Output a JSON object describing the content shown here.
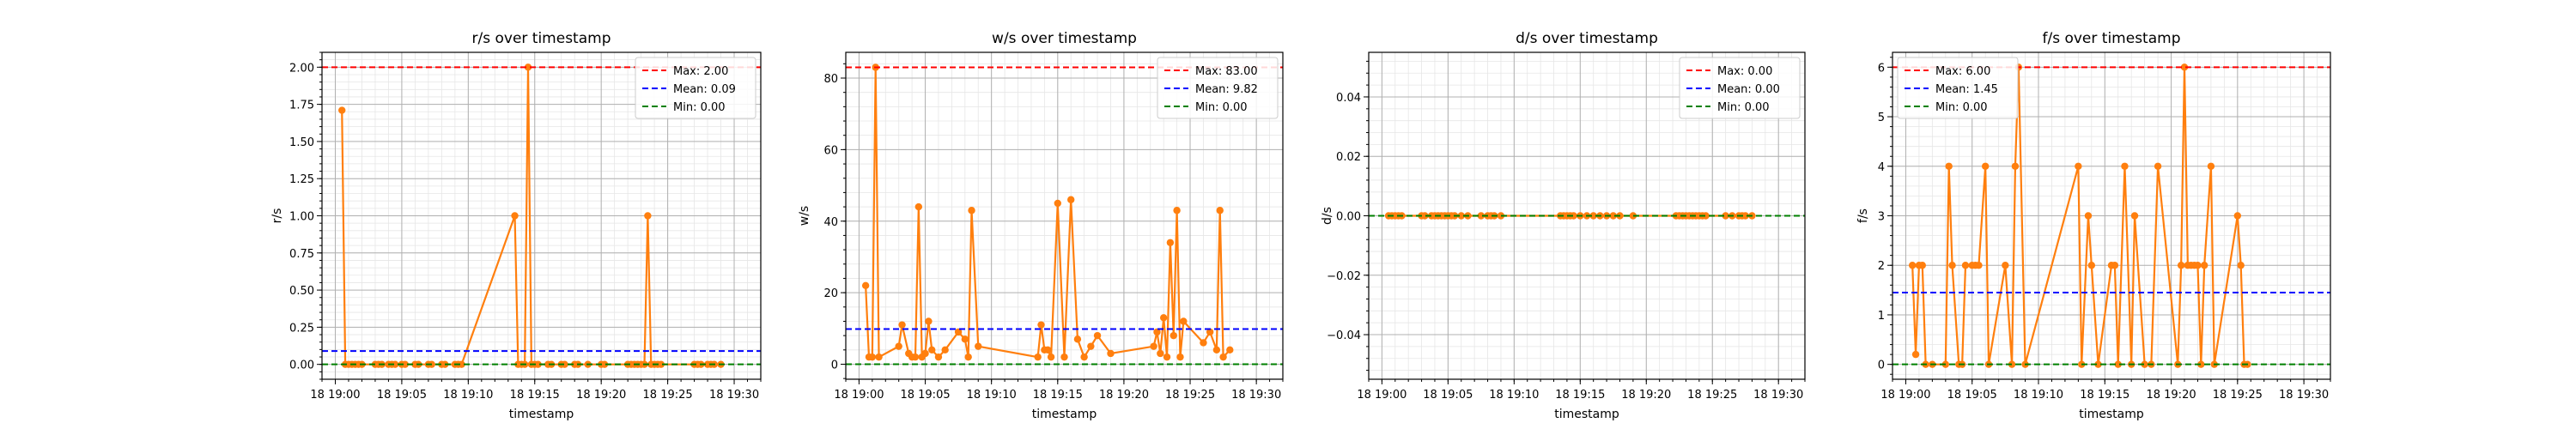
{
  "chart_data": [
    {
      "type": "line",
      "title": "r/s over timestamp",
      "xlabel": "timestamp",
      "ylabel": "r/s",
      "xlim": [
        "2024-01-18 18:59:00",
        "2024-01-18 19:32:00"
      ],
      "ylim": [
        -0.1,
        2.1
      ],
      "yticks": [
        0.0,
        0.25,
        0.5,
        0.75,
        1.0,
        1.25,
        1.5,
        1.75,
        2.0
      ],
      "ytick_labels": [
        "0.00",
        "0.25",
        "0.50",
        "0.75",
        "1.00",
        "1.25",
        "1.50",
        "1.75",
        "2.00"
      ],
      "xtick_labels": [
        "18 19:00",
        "18 19:05",
        "18 19:10",
        "18 19:15",
        "18 19:20",
        "18 19:25",
        "18 19:30"
      ],
      "grid": true,
      "legend_position": "top-right",
      "series": [
        {
          "color": "#ff7f0e",
          "x": [
            "19:00:30",
            "19:00:45",
            "19:01:00",
            "19:01:15",
            "19:01:30",
            "19:01:45",
            "19:02:00",
            "19:03:00",
            "19:03:15",
            "19:03:30",
            "19:04:00",
            "19:04:15",
            "19:04:30",
            "19:05:00",
            "19:05:15",
            "19:06:00",
            "19:06:15",
            "19:07:00",
            "19:07:15",
            "19:08:00",
            "19:08:15",
            "19:09:00",
            "19:09:15",
            "19:09:30",
            "19:13:30",
            "19:13:45",
            "19:14:00",
            "19:14:15",
            "19:14:30",
            "19:14:45",
            "19:15:00",
            "19:15:15",
            "19:16:00",
            "19:16:15",
            "19:17:00",
            "19:17:15",
            "19:18:00",
            "19:18:15",
            "19:19:00",
            "19:20:00",
            "19:20:15",
            "19:22:00",
            "19:22:15",
            "19:22:30",
            "19:22:45",
            "19:23:00",
            "19:23:15",
            "19:23:30",
            "19:23:45",
            "19:24:00",
            "19:24:15",
            "19:24:30",
            "19:27:00",
            "19:27:15",
            "19:27:30",
            "19:28:00",
            "19:28:15",
            "19:28:30",
            "19:29:00"
          ],
          "values": [
            1.71,
            0,
            0,
            0,
            0,
            0,
            0,
            0,
            0,
            0,
            0,
            0,
            0,
            0,
            0,
            0,
            0,
            0,
            0,
            0,
            0,
            0,
            0,
            0,
            1.0,
            0,
            0,
            0,
            2.0,
            0,
            0,
            0,
            0,
            0,
            0,
            0,
            0,
            0,
            0,
            0,
            0,
            0,
            0,
            0,
            0,
            0,
            0,
            1.0,
            0,
            0,
            0,
            0,
            0,
            0,
            0,
            0,
            0,
            0,
            0
          ]
        },
        {
          "name": "Max: 2.00",
          "color": "#ff0000",
          "style": "dashed",
          "constant": 2.0
        },
        {
          "name": "Mean: 0.09",
          "color": "#0000ff",
          "style": "dashed",
          "constant": 0.09
        },
        {
          "name": "Min: 0.00",
          "color": "#008000",
          "style": "dashed",
          "constant": 0.0
        }
      ]
    },
    {
      "type": "line",
      "title": "w/s over timestamp",
      "xlabel": "timestamp",
      "ylabel": "w/s",
      "xlim": [
        "2024-01-18 18:59:00",
        "2024-01-18 19:32:00"
      ],
      "ylim": [
        -4.2,
        87.2
      ],
      "yticks": [
        0,
        20,
        40,
        60,
        80
      ],
      "ytick_labels": [
        "0",
        "20",
        "40",
        "60",
        "80"
      ],
      "xtick_labels": [
        "18 19:00",
        "18 19:05",
        "18 19:10",
        "18 19:15",
        "18 19:20",
        "18 19:25",
        "18 19:30"
      ],
      "grid": true,
      "legend_position": "top-right",
      "series": [
        {
          "color": "#ff7f0e",
          "x": [
            "19:00:30",
            "19:00:45",
            "19:01:00",
            "19:01:15",
            "19:01:30",
            "19:03:00",
            "19:03:15",
            "19:03:45",
            "19:04:00",
            "19:04:15",
            "19:04:30",
            "19:04:45",
            "19:05:00",
            "19:05:15",
            "19:05:30",
            "19:06:00",
            "19:06:30",
            "19:07:30",
            "19:08:00",
            "19:08:15",
            "19:08:30",
            "19:09:00",
            "19:13:30",
            "19:13:45",
            "19:14:00",
            "19:14:15",
            "19:14:30",
            "19:15:00",
            "19:15:30",
            "19:16:00",
            "19:16:30",
            "19:17:00",
            "19:17:30",
            "19:18:00",
            "19:19:00",
            "19:22:15",
            "19:22:30",
            "19:22:45",
            "19:23:00",
            "19:23:15",
            "19:23:30",
            "19:23:45",
            "19:24:00",
            "19:24:15",
            "19:24:30",
            "19:26:00",
            "19:26:30",
            "19:27:00",
            "19:27:15",
            "19:27:30",
            "19:28:00"
          ],
          "values": [
            22,
            2,
            2,
            83,
            2,
            5,
            11,
            3,
            2,
            2,
            44,
            2,
            3,
            12,
            4,
            2,
            4,
            9,
            7,
            2,
            43,
            5,
            2,
            11,
            4,
            4,
            2,
            45,
            2,
            46,
            7,
            2,
            5,
            8,
            3,
            5,
            9,
            3,
            13,
            2,
            34,
            8,
            43,
            2,
            12,
            6,
            9,
            4,
            43,
            2,
            4
          ]
        },
        {
          "name": "Max: 83.00",
          "color": "#ff0000",
          "style": "dashed",
          "constant": 83.0
        },
        {
          "name": "Mean: 9.82",
          "color": "#0000ff",
          "style": "dashed",
          "constant": 9.82
        },
        {
          "name": "Min: 0.00",
          "color": "#008000",
          "style": "dashed",
          "constant": 0.0
        }
      ]
    },
    {
      "type": "line",
      "title": "d/s over timestamp",
      "xlabel": "timestamp",
      "ylabel": "d/s",
      "xlim": [
        "2024-01-18 18:59:00",
        "2024-01-18 19:32:00"
      ],
      "ylim": [
        -0.055,
        0.055
      ],
      "yticks": [
        -0.04,
        -0.02,
        0.0,
        0.02,
        0.04
      ],
      "ytick_labels": [
        "−0.04",
        "−0.02",
        "0.00",
        "0.02",
        "0.04"
      ],
      "xtick_labels": [
        "18 19:00",
        "18 19:05",
        "18 19:10",
        "18 19:15",
        "18 19:20",
        "18 19:25",
        "18 19:30"
      ],
      "grid": true,
      "legend_position": "top-right",
      "series": [
        {
          "color": "#ff7f0e",
          "x": [
            "19:00:30",
            "19:00:45",
            "19:01:00",
            "19:01:15",
            "19:01:30",
            "19:03:00",
            "19:03:15",
            "19:03:45",
            "19:04:00",
            "19:04:15",
            "19:04:30",
            "19:04:45",
            "19:05:00",
            "19:05:15",
            "19:05:30",
            "19:06:00",
            "19:06:30",
            "19:07:30",
            "19:08:00",
            "19:08:15",
            "19:08:30",
            "19:09:00",
            "19:13:30",
            "19:13:45",
            "19:14:00",
            "19:14:15",
            "19:14:30",
            "19:15:00",
            "19:15:30",
            "19:16:00",
            "19:16:30",
            "19:17:00",
            "19:17:30",
            "19:18:00",
            "19:19:00",
            "19:22:15",
            "19:22:30",
            "19:22:45",
            "19:23:00",
            "19:23:15",
            "19:23:30",
            "19:23:45",
            "19:24:00",
            "19:24:15",
            "19:24:30",
            "19:26:00",
            "19:26:30",
            "19:27:00",
            "19:27:15",
            "19:27:30",
            "19:28:00"
          ],
          "values": [
            0,
            0,
            0,
            0,
            0,
            0,
            0,
            0,
            0,
            0,
            0,
            0,
            0,
            0,
            0,
            0,
            0,
            0,
            0,
            0,
            0,
            0,
            0,
            0,
            0,
            0,
            0,
            0,
            0,
            0,
            0,
            0,
            0,
            0,
            0,
            0,
            0,
            0,
            0,
            0,
            0,
            0,
            0,
            0,
            0,
            0,
            0,
            0,
            0,
            0,
            0
          ]
        },
        {
          "name": "Max: 0.00",
          "color": "#ff0000",
          "style": "dashed",
          "constant": 0.0
        },
        {
          "name": "Mean: 0.00",
          "color": "#0000ff",
          "style": "dashed",
          "constant": 0.0
        },
        {
          "name": "Min: 0.00",
          "color": "#008000",
          "style": "dashed",
          "constant": 0.0
        }
      ]
    },
    {
      "type": "line",
      "title": "f/s over timestamp",
      "xlabel": "timestamp",
      "ylabel": "f/s",
      "xlim": [
        "2024-01-18 18:59:00",
        "2024-01-18 19:32:00"
      ],
      "ylim": [
        -0.3,
        6.3
      ],
      "yticks": [
        0,
        1,
        2,
        3,
        4,
        5,
        6
      ],
      "ytick_labels": [
        "0",
        "1",
        "2",
        "3",
        "4",
        "5",
        "6"
      ],
      "xtick_labels": [
        "18 19:00",
        "18 19:05",
        "18 19:10",
        "18 19:15",
        "18 19:20",
        "18 19:25",
        "18 19:30"
      ],
      "grid": true,
      "legend_position": "top-left",
      "series": [
        {
          "color": "#ff7f0e",
          "x": [
            "19:00:30",
            "19:00:45",
            "19:01:00",
            "19:01:15",
            "19:01:30",
            "19:02:00",
            "19:03:00",
            "19:03:15",
            "19:03:30",
            "19:04:00",
            "19:04:15",
            "19:04:30",
            "19:05:00",
            "19:05:15",
            "19:05:30",
            "19:06:00",
            "19:06:15",
            "19:07:30",
            "19:08:00",
            "19:08:15",
            "19:08:30",
            "19:09:00",
            "19:13:00",
            "19:13:15",
            "19:13:45",
            "19:14:00",
            "19:14:30",
            "19:15:30",
            "19:15:45",
            "19:16:00",
            "19:16:30",
            "19:17:00",
            "19:17:15",
            "19:18:00",
            "19:18:30",
            "19:19:00",
            "19:20:30",
            "19:20:45",
            "19:21:00",
            "19:21:15",
            "19:21:30",
            "19:21:45",
            "19:22:00",
            "19:22:15",
            "19:22:30",
            "19:23:00",
            "19:23:15",
            "19:25:00",
            "19:25:15",
            "19:25:30",
            "19:25:45"
          ],
          "values": [
            2,
            0.2,
            2,
            2,
            0,
            0,
            0,
            4,
            2,
            0,
            0,
            2,
            2,
            2,
            2,
            4,
            0,
            2,
            0,
            4,
            6,
            0,
            4,
            0,
            3,
            2,
            0,
            2,
            2,
            0,
            4,
            0,
            3,
            0,
            0,
            4,
            0,
            2,
            6,
            2,
            2,
            2,
            2,
            0,
            2,
            4,
            0,
            3,
            2,
            0,
            0
          ]
        },
        {
          "name": "Max: 6.00",
          "color": "#ff0000",
          "style": "dashed",
          "constant": 6.0
        },
        {
          "name": "Mean: 1.45",
          "color": "#0000ff",
          "style": "dashed",
          "constant": 1.45
        },
        {
          "name": "Min: 0.00",
          "color": "#008000",
          "style": "dashed",
          "constant": 0.0
        }
      ]
    }
  ]
}
